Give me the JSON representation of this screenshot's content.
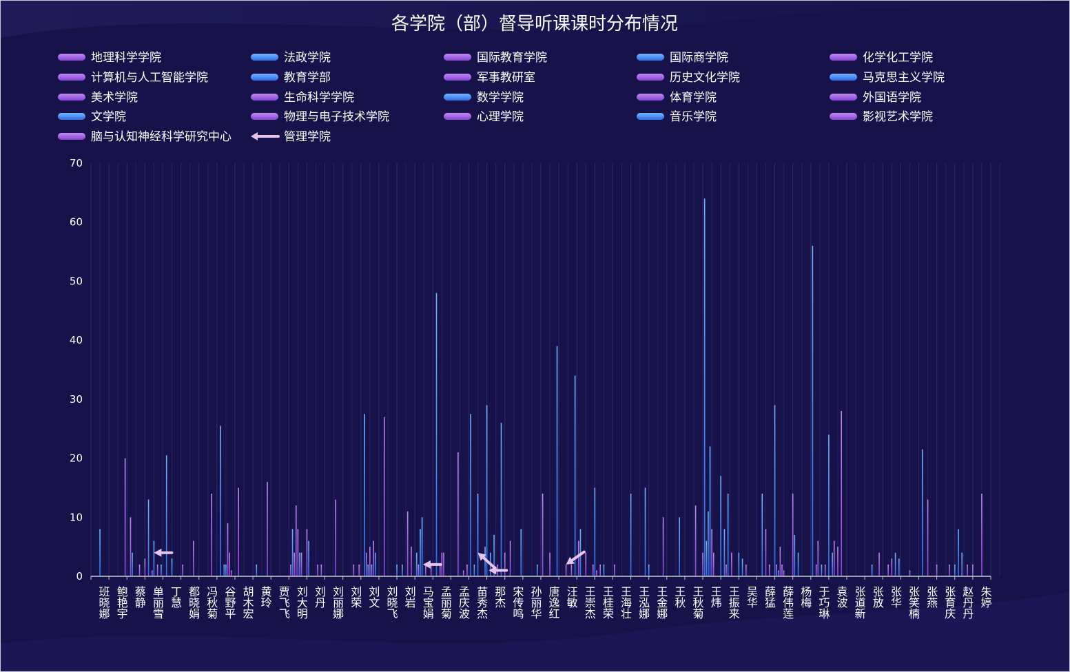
{
  "chart_data": {
    "type": "bar",
    "title": "各学院（部）督导听课课时分布情况",
    "xlabel": "",
    "ylabel": "",
    "ylim": [
      0,
      70
    ],
    "yticks": [
      0,
      10,
      20,
      30,
      40,
      50,
      60,
      70
    ],
    "grid": false,
    "legend_position": "top",
    "colors": {
      "blue": "#3c8cff",
      "purple": "#9b58e6",
      "background": "#17134a",
      "pointer": "#e6c4ec"
    },
    "series": [
      {
        "name": "地理科学学院",
        "color": "purple"
      },
      {
        "name": "法政学院",
        "color": "blue"
      },
      {
        "name": "国际教育学院",
        "color": "purple"
      },
      {
        "name": "国际商学院",
        "color": "blue"
      },
      {
        "name": "化学化工学院",
        "color": "purple"
      },
      {
        "name": "计算机与人工智能学院",
        "color": "purple"
      },
      {
        "name": "教育学部",
        "color": "blue"
      },
      {
        "name": "军事教研室",
        "color": "purple"
      },
      {
        "name": "历史文化学院",
        "color": "purple"
      },
      {
        "name": "马克思主义学院",
        "color": "blue"
      },
      {
        "name": "美术学院",
        "color": "purple"
      },
      {
        "name": "生命科学学院",
        "color": "purple"
      },
      {
        "name": "数学学院",
        "color": "blue"
      },
      {
        "name": "体育学院",
        "color": "purple"
      },
      {
        "name": "外国语学院",
        "color": "purple"
      },
      {
        "name": "文学院",
        "color": "blue"
      },
      {
        "name": "物理与电子技术学院",
        "color": "purple"
      },
      {
        "name": "心理学院",
        "color": "purple"
      },
      {
        "name": "音乐学院",
        "color": "blue"
      },
      {
        "name": "影视艺术学院",
        "color": "purple"
      },
      {
        "name": "脑与认知神经科学研究中心",
        "color": "purple"
      },
      {
        "name": "管理学院",
        "color": "pointer"
      }
    ],
    "categories": [
      "班晓娜",
      "鲍艳宇",
      "蔡静",
      "单丽雪",
      "丁慧",
      "都晓娟",
      "冯秋菊",
      "谷野平",
      "胡木宏",
      "黄玲",
      "贾飞飞",
      "刘大明",
      "刘丹",
      "刘丽娜",
      "刘荣",
      "刘文",
      "刘晓飞",
      "刘岩",
      "马宝娟",
      "孟丽菊",
      "孟庆波",
      "苗秀杰",
      "那杰",
      "宋传鸣",
      "孙丽华",
      "唐逸红",
      "汪敏",
      "王崇杰",
      "王桂荣",
      "王海壮",
      "王泓娜",
      "王金娜",
      "王秋",
      "王秋菊",
      "王炜",
      "王振来",
      "吴华",
      "薛猛",
      "薛伟莲",
      "杨梅",
      "于巧琳",
      "袁波",
      "张道新",
      "张放",
      "张华",
      "张笑楠",
      "张燕",
      "张育庆",
      "赵丹丹",
      "朱婷"
    ],
    "points": [
      {
        "c": 0,
        "o": 0.5,
        "v": 8,
        "k": "blue"
      },
      {
        "c": 1,
        "o": 0.9,
        "v": 20,
        "k": "purple"
      },
      {
        "c": 2,
        "o": 0.2,
        "v": 10,
        "k": "purple"
      },
      {
        "c": 2,
        "o": 0.3,
        "v": 4,
        "k": "blue"
      },
      {
        "c": 2,
        "o": 0.7,
        "v": 2,
        "k": "purple"
      },
      {
        "c": 2,
        "o": 1.0,
        "v": 3,
        "k": "purple"
      },
      {
        "c": 3,
        "o": 0.2,
        "v": 13,
        "k": "blue"
      },
      {
        "c": 3,
        "o": 0.4,
        "v": 1,
        "k": "purple"
      },
      {
        "c": 3,
        "o": 0.5,
        "v": 6,
        "k": "blue"
      },
      {
        "c": 3,
        "o": 0.7,
        "v": 2,
        "k": "purple"
      },
      {
        "c": 3,
        "o": 0.9,
        "v": 2,
        "k": "blue"
      },
      {
        "c": 4,
        "o": 0.2,
        "v": 20.5,
        "k": "blue"
      },
      {
        "c": 4,
        "o": 0.5,
        "v": 3,
        "k": "blue"
      },
      {
        "c": 5,
        "o": 0.1,
        "v": 2,
        "k": "purple"
      },
      {
        "c": 5,
        "o": 0.7,
        "v": 6,
        "k": "purple"
      },
      {
        "c": 6,
        "o": 0.7,
        "v": 14,
        "k": "purple"
      },
      {
        "c": 7,
        "o": 0.2,
        "v": 25.5,
        "k": "blue"
      },
      {
        "c": 7,
        "o": 0.4,
        "v": 2,
        "k": "blue"
      },
      {
        "c": 7,
        "o": 0.5,
        "v": 2,
        "k": "blue"
      },
      {
        "c": 7,
        "o": 0.6,
        "v": 9,
        "k": "purple"
      },
      {
        "c": 7,
        "o": 0.7,
        "v": 4,
        "k": "purple"
      },
      {
        "c": 7,
        "o": 0.8,
        "v": 1,
        "k": "purple"
      },
      {
        "c": 8,
        "o": 0.2,
        "v": 15,
        "k": "purple"
      },
      {
        "c": 9,
        "o": 0.2,
        "v": 2,
        "k": "blue"
      },
      {
        "c": 9,
        "o": 0.8,
        "v": 16,
        "k": "purple"
      },
      {
        "c": 11,
        "o": 0.1,
        "v": 2,
        "k": "purple"
      },
      {
        "c": 11,
        "o": 0.2,
        "v": 8,
        "k": "blue"
      },
      {
        "c": 11,
        "o": 0.3,
        "v": 4,
        "k": "purple"
      },
      {
        "c": 11,
        "o": 0.4,
        "v": 12,
        "k": "purple"
      },
      {
        "c": 11,
        "o": 0.5,
        "v": 8,
        "k": "purple"
      },
      {
        "c": 11,
        "o": 0.6,
        "v": 4,
        "k": "blue"
      },
      {
        "c": 11,
        "o": 0.7,
        "v": 4,
        "k": "purple"
      },
      {
        "c": 12,
        "o": 0.0,
        "v": 8,
        "k": "purple"
      },
      {
        "c": 12,
        "o": 0.1,
        "v": 6,
        "k": "blue"
      },
      {
        "c": 12,
        "o": 0.6,
        "v": 2,
        "k": "purple"
      },
      {
        "c": 12,
        "o": 0.8,
        "v": 2,
        "k": "purple"
      },
      {
        "c": 13,
        "o": 0.6,
        "v": 13,
        "k": "purple"
      },
      {
        "c": 14,
        "o": 0.6,
        "v": 2,
        "k": "purple"
      },
      {
        "c": 14,
        "o": 0.9,
        "v": 2,
        "k": "purple"
      },
      {
        "c": 15,
        "o": 0.2,
        "v": 27.5,
        "k": "blue"
      },
      {
        "c": 15,
        "o": 0.3,
        "v": 4,
        "k": "purple"
      },
      {
        "c": 15,
        "o": 0.4,
        "v": 2,
        "k": "blue"
      },
      {
        "c": 15,
        "o": 0.5,
        "v": 5,
        "k": "purple"
      },
      {
        "c": 15,
        "o": 0.6,
        "v": 2,
        "k": "blue"
      },
      {
        "c": 15,
        "o": 0.7,
        "v": 6,
        "k": "purple"
      },
      {
        "c": 15,
        "o": 0.8,
        "v": 4,
        "k": "blue"
      },
      {
        "c": 16,
        "o": 0.3,
        "v": 27,
        "k": "purple"
      },
      {
        "c": 17,
        "o": 0.0,
        "v": 2,
        "k": "blue"
      },
      {
        "c": 17,
        "o": 0.3,
        "v": 2,
        "k": "blue"
      },
      {
        "c": 17,
        "o": 0.6,
        "v": 11,
        "k": "purple"
      },
      {
        "c": 17,
        "o": 0.8,
        "v": 5,
        "k": "purple"
      },
      {
        "c": 18,
        "o": 0.1,
        "v": 4,
        "k": "blue"
      },
      {
        "c": 18,
        "o": 0.2,
        "v": 2,
        "k": "purple"
      },
      {
        "c": 18,
        "o": 0.3,
        "v": 8,
        "k": "blue"
      },
      {
        "c": 18,
        "o": 0.4,
        "v": 10,
        "k": "blue"
      },
      {
        "c": 18,
        "o": 0.6,
        "v": 2,
        "k": "purple"
      },
      {
        "c": 18,
        "o": 0.9,
        "v": 2,
        "k": "purple"
      },
      {
        "c": 19,
        "o": 0.2,
        "v": 48,
        "k": "blue"
      },
      {
        "c": 19,
        "o": 0.4,
        "v": 2,
        "k": "purple"
      },
      {
        "c": 19,
        "o": 0.5,
        "v": 4,
        "k": "purple"
      },
      {
        "c": 19,
        "o": 0.6,
        "v": 4,
        "k": "purple"
      },
      {
        "c": 20,
        "o": 0.4,
        "v": 21,
        "k": "purple"
      },
      {
        "c": 20,
        "o": 0.7,
        "v": 1,
        "k": "purple"
      },
      {
        "c": 20,
        "o": 0.9,
        "v": 2,
        "k": "purple"
      },
      {
        "c": 21,
        "o": 0.1,
        "v": 27.5,
        "k": "blue"
      },
      {
        "c": 21,
        "o": 0.3,
        "v": 2,
        "k": "blue"
      },
      {
        "c": 21,
        "o": 0.5,
        "v": 14,
        "k": "blue"
      },
      {
        "c": 21,
        "o": 0.9,
        "v": 5,
        "k": "blue"
      },
      {
        "c": 22,
        "o": 0.0,
        "v": 29,
        "k": "blue"
      },
      {
        "c": 22,
        "o": 0.2,
        "v": 4,
        "k": "blue"
      },
      {
        "c": 22,
        "o": 0.4,
        "v": 7,
        "k": "blue"
      },
      {
        "c": 22,
        "o": 0.6,
        "v": 2,
        "k": "purple"
      },
      {
        "c": 22,
        "o": 0.8,
        "v": 26,
        "k": "blue"
      },
      {
        "c": 23,
        "o": 0.0,
        "v": 4,
        "k": "purple"
      },
      {
        "c": 23,
        "o": 0.3,
        "v": 6,
        "k": "purple"
      },
      {
        "c": 23,
        "o": 0.9,
        "v": 8,
        "k": "blue"
      },
      {
        "c": 24,
        "o": 0.8,
        "v": 2,
        "k": "blue"
      },
      {
        "c": 25,
        "o": 0.1,
        "v": 14,
        "k": "purple"
      },
      {
        "c": 25,
        "o": 0.5,
        "v": 4,
        "k": "purple"
      },
      {
        "c": 25,
        "o": 0.9,
        "v": 39,
        "k": "blue"
      },
      {
        "c": 26,
        "o": 0.9,
        "v": 34,
        "k": "blue"
      },
      {
        "c": 26,
        "o": 0.4,
        "v": 2,
        "k": "purple"
      },
      {
        "c": 26,
        "o": 0.7,
        "v": 2,
        "k": "purple"
      },
      {
        "c": 27,
        "o": 0.1,
        "v": 6,
        "k": "purple"
      },
      {
        "c": 27,
        "o": 0.2,
        "v": 8,
        "k": "blue"
      },
      {
        "c": 27,
        "o": 0.5,
        "v": 4,
        "k": "purple"
      },
      {
        "c": 27,
        "o": 0.9,
        "v": 2,
        "k": "purple"
      },
      {
        "c": 28,
        "o": 0.0,
        "v": 15,
        "k": "blue"
      },
      {
        "c": 28,
        "o": 0.1,
        "v": 1,
        "k": "purple"
      },
      {
        "c": 28,
        "o": 0.3,
        "v": 2,
        "k": "purple"
      },
      {
        "c": 28,
        "o": 0.5,
        "v": 2,
        "k": "blue"
      },
      {
        "c": 29,
        "o": 0.1,
        "v": 2,
        "k": "purple"
      },
      {
        "c": 30,
        "o": 0.0,
        "v": 14,
        "k": "blue"
      },
      {
        "c": 30,
        "o": 0.8,
        "v": 15,
        "k": "blue"
      },
      {
        "c": 31,
        "o": 0.0,
        "v": 2,
        "k": "blue"
      },
      {
        "c": 31,
        "o": 0.8,
        "v": 10,
        "k": "purple"
      },
      {
        "c": 32,
        "o": 0.7,
        "v": 10,
        "k": "blue"
      },
      {
        "c": 33,
        "o": 0.6,
        "v": 12,
        "k": "purple"
      },
      {
        "c": 34,
        "o": 0.0,
        "v": 4,
        "k": "purple"
      },
      {
        "c": 34,
        "o": 0.1,
        "v": 64,
        "k": "blue"
      },
      {
        "c": 34,
        "o": 0.2,
        "v": 6,
        "k": "blue"
      },
      {
        "c": 34,
        "o": 0.3,
        "v": 11,
        "k": "blue"
      },
      {
        "c": 34,
        "o": 0.4,
        "v": 22,
        "k": "blue"
      },
      {
        "c": 34,
        "o": 0.5,
        "v": 8,
        "k": "purple"
      },
      {
        "c": 34,
        "o": 0.6,
        "v": 4,
        "k": "purple"
      },
      {
        "c": 35,
        "o": 0.0,
        "v": 17,
        "k": "blue"
      },
      {
        "c": 35,
        "o": 0.2,
        "v": 8,
        "k": "blue"
      },
      {
        "c": 35,
        "o": 0.3,
        "v": 2,
        "k": "purple"
      },
      {
        "c": 35,
        "o": 0.4,
        "v": 14,
        "k": "blue"
      },
      {
        "c": 35,
        "o": 0.6,
        "v": 4,
        "k": "purple"
      },
      {
        "c": 36,
        "o": 0.0,
        "v": 4,
        "k": "blue"
      },
      {
        "c": 36,
        "o": 0.2,
        "v": 3,
        "k": "blue"
      },
      {
        "c": 36,
        "o": 0.4,
        "v": 2,
        "k": "purple"
      },
      {
        "c": 37,
        "o": 0.3,
        "v": 14,
        "k": "blue"
      },
      {
        "c": 37,
        "o": 0.5,
        "v": 8,
        "k": "purple"
      },
      {
        "c": 37,
        "o": 0.7,
        "v": 2,
        "k": "purple"
      },
      {
        "c": 38,
        "o": 0.0,
        "v": 29,
        "k": "blue"
      },
      {
        "c": 38,
        "o": 0.1,
        "v": 2,
        "k": "purple"
      },
      {
        "c": 38,
        "o": 0.2,
        "v": 1,
        "k": "blue"
      },
      {
        "c": 38,
        "o": 0.3,
        "v": 5,
        "k": "purple"
      },
      {
        "c": 38,
        "o": 0.4,
        "v": 2,
        "k": "purple"
      },
      {
        "c": 38,
        "o": 0.5,
        "v": 1,
        "k": "purple"
      },
      {
        "c": 39,
        "o": 0.0,
        "v": 14,
        "k": "purple"
      },
      {
        "c": 39,
        "o": 0.1,
        "v": 7,
        "k": "blue"
      },
      {
        "c": 39,
        "o": 0.3,
        "v": 4,
        "k": "blue"
      },
      {
        "c": 40,
        "o": 0.1,
        "v": 56,
        "k": "blue"
      },
      {
        "c": 40,
        "o": 0.3,
        "v": 2,
        "k": "purple"
      },
      {
        "c": 40,
        "o": 0.4,
        "v": 6,
        "k": "purple"
      },
      {
        "c": 40,
        "o": 0.6,
        "v": 2,
        "k": "blue"
      },
      {
        "c": 40,
        "o": 0.8,
        "v": 2,
        "k": "purple"
      },
      {
        "c": 41,
        "o": 0.0,
        "v": 24,
        "k": "blue"
      },
      {
        "c": 41,
        "o": 0.2,
        "v": 4,
        "k": "blue"
      },
      {
        "c": 41,
        "o": 0.3,
        "v": 6,
        "k": "purple"
      },
      {
        "c": 41,
        "o": 0.5,
        "v": 5,
        "k": "purple"
      },
      {
        "c": 41,
        "o": 0.7,
        "v": 28,
        "k": "purple"
      },
      {
        "c": 43,
        "o": 0.4,
        "v": 2,
        "k": "blue"
      },
      {
        "c": 43,
        "o": 0.8,
        "v": 4,
        "k": "purple"
      },
      {
        "c": 44,
        "o": 0.3,
        "v": 2,
        "k": "purple"
      },
      {
        "c": 44,
        "o": 0.5,
        "v": 3,
        "k": "purple"
      },
      {
        "c": 44,
        "o": 0.7,
        "v": 4,
        "k": "blue"
      },
      {
        "c": 44,
        "o": 0.9,
        "v": 3,
        "k": "blue"
      },
      {
        "c": 45,
        "o": 0.5,
        "v": 1,
        "k": "purple"
      },
      {
        "c": 46,
        "o": 0.2,
        "v": 21.5,
        "k": "blue"
      },
      {
        "c": 46,
        "o": 0.5,
        "v": 13,
        "k": "purple"
      },
      {
        "c": 47,
        "o": 0.0,
        "v": 2,
        "k": "purple"
      },
      {
        "c": 47,
        "o": 0.7,
        "v": 2,
        "k": "purple"
      },
      {
        "c": 48,
        "o": 0.0,
        "v": 2,
        "k": "blue"
      },
      {
        "c": 48,
        "o": 0.2,
        "v": 8,
        "k": "blue"
      },
      {
        "c": 48,
        "o": 0.4,
        "v": 4,
        "k": "blue"
      },
      {
        "c": 48,
        "o": 0.7,
        "v": 2,
        "k": "purple"
      },
      {
        "c": 49,
        "o": 0.0,
        "v": 2,
        "k": "purple"
      },
      {
        "c": 49,
        "o": 0.5,
        "v": 14,
        "k": "purple"
      }
    ]
  }
}
